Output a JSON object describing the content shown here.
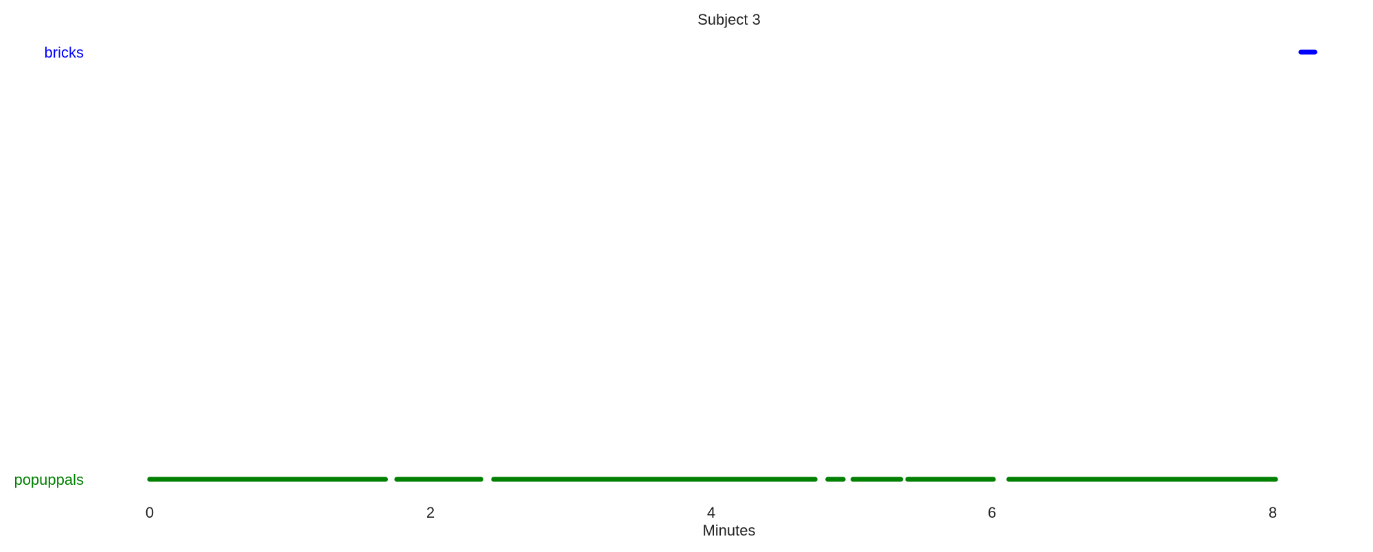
{
  "chart_data": {
    "type": "timeline",
    "title": "Subject 3",
    "xlabel": "Minutes",
    "xlim": [
      0,
      8.4
    ],
    "xticks": [
      0,
      2,
      4,
      6,
      8
    ],
    "grid": false,
    "series": [
      {
        "name": "bricks",
        "color": "#0000ff",
        "segments": [
          [
            8.2,
            8.3
          ]
        ]
      },
      {
        "name": "popuppals",
        "color": "#008000",
        "segments": [
          [
            0.0,
            1.68
          ],
          [
            1.76,
            2.36
          ],
          [
            2.45,
            4.74
          ],
          [
            4.83,
            4.94
          ],
          [
            5.01,
            5.35
          ],
          [
            5.4,
            6.01
          ],
          [
            6.12,
            8.02
          ]
        ]
      }
    ]
  }
}
